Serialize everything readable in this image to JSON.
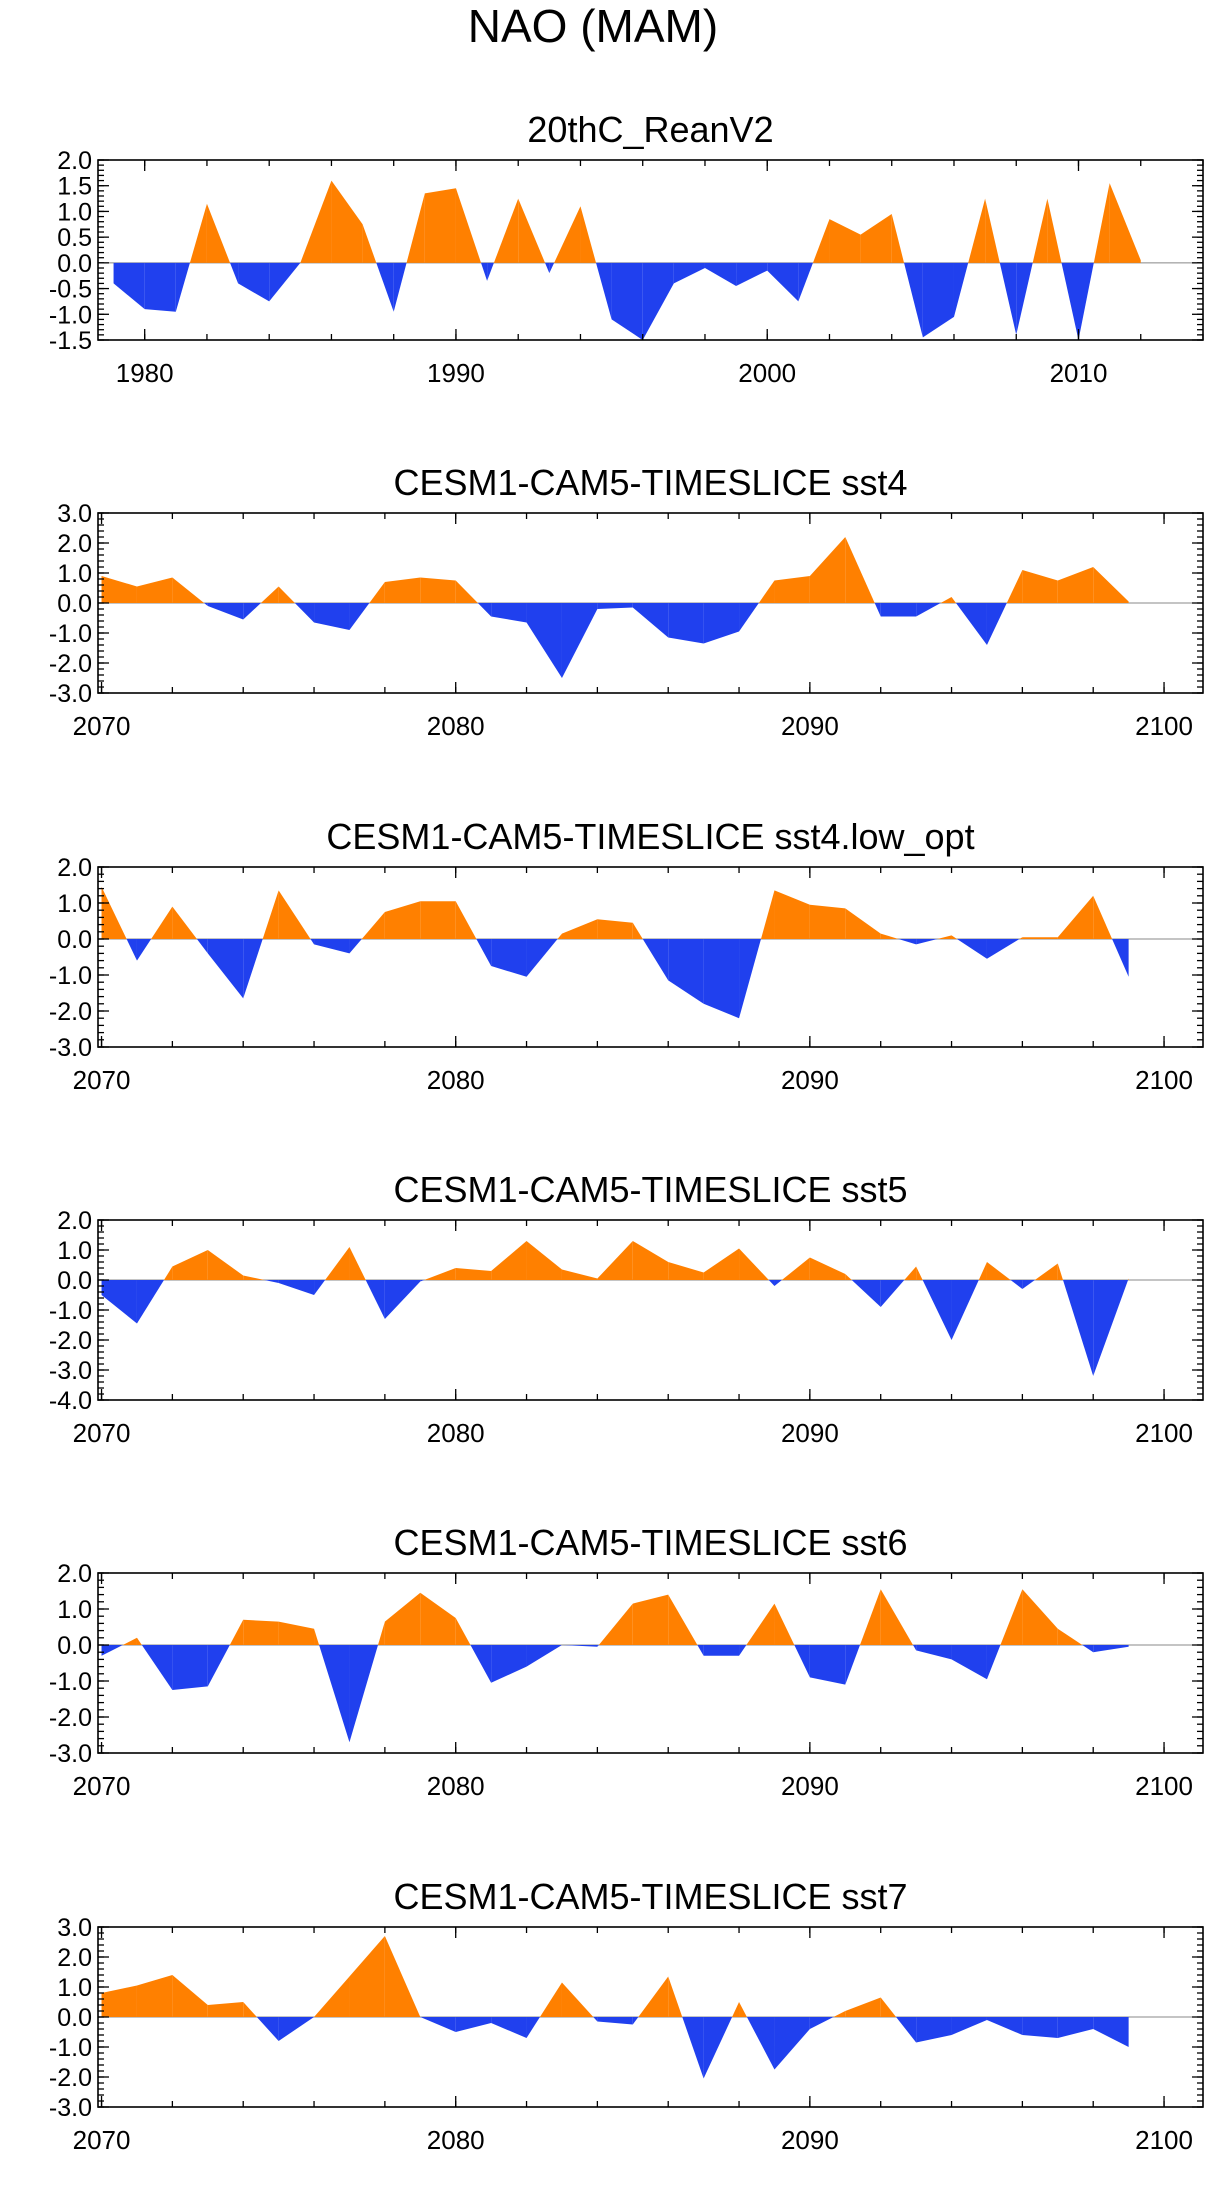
{
  "figure": {
    "title": "NAO (MAM)",
    "colors": {
      "positive": "#ff8000",
      "negative": "#2040ee",
      "frame": "#000000",
      "zero_line": "#888888"
    }
  },
  "chart_data": [
    {
      "type": "area",
      "title": "20thC_ReanV2",
      "xlim": [
        1978.5,
        2014
      ],
      "ylim": [
        -1.5,
        2.0
      ],
      "yticks": [
        2.0,
        1.5,
        1.0,
        0.5,
        0.0,
        -0.5,
        -1.0,
        -1.5
      ],
      "ytick_labels": [
        "2.0",
        "1.5",
        "1.0",
        "0.5",
        "0.0",
        "-0.5",
        "-1.0",
        "-1.5"
      ],
      "xticks": [
        1980,
        1990,
        2000,
        2010
      ],
      "xtick_labels": [
        "1980",
        "1990",
        "2000",
        "2010"
      ],
      "x": [
        1979,
        1980,
        1981,
        1982,
        1983,
        1984,
        1985,
        1986,
        1987,
        1988,
        1989,
        1990,
        1991,
        1992,
        1993,
        1994,
        1995,
        1996,
        1997,
        1998,
        1999,
        2000,
        2001,
        2002,
        2003,
        2004,
        2005,
        2006,
        2007,
        2008,
        2009,
        2010,
        2011,
        2012
      ],
      "values": [
        -0.4,
        -0.9,
        -0.95,
        1.15,
        -0.4,
        -0.75,
        0.0,
        1.6,
        0.75,
        -0.95,
        1.35,
        1.45,
        -0.35,
        1.25,
        -0.2,
        1.1,
        -1.1,
        -1.5,
        -0.4,
        -0.1,
        -0.45,
        -0.15,
        -0.75,
        0.85,
        0.55,
        0.95,
        -1.45,
        -1.05,
        1.25,
        -1.4,
        1.25,
        -1.5,
        1.55,
        0.05
      ]
    },
    {
      "type": "area",
      "title": "CESM1-CAM5-TIMESLICE sst4",
      "xlim": [
        2069.9,
        2101.1
      ],
      "ylim": [
        -3.0,
        3.0
      ],
      "yticks": [
        3.0,
        2.0,
        1.0,
        0.0,
        -1.0,
        -2.0,
        -3.0
      ],
      "ytick_labels": [
        "3.0",
        "2.0",
        "1.0",
        "0.0",
        "-1.0",
        "-2.0",
        "-3.0"
      ],
      "xticks": [
        2070,
        2080,
        2090,
        2100
      ],
      "xtick_labels": [
        "2070",
        "2080",
        "2090",
        "2100"
      ],
      "x": [
        2070,
        2071,
        2072,
        2073,
        2074,
        2075,
        2076,
        2077,
        2078,
        2079,
        2080,
        2081,
        2082,
        2083,
        2084,
        2085,
        2086,
        2087,
        2088,
        2089,
        2090,
        2091,
        2092,
        2093,
        2094,
        2095,
        2096,
        2097,
        2098,
        2099
      ],
      "values": [
        0.9,
        0.55,
        0.85,
        -0.1,
        -0.55,
        0.55,
        -0.65,
        -0.9,
        0.7,
        0.85,
        0.75,
        -0.45,
        -0.65,
        -2.5,
        -0.2,
        -0.15,
        -1.15,
        -1.35,
        -0.95,
        0.75,
        0.9,
        2.2,
        -0.45,
        -0.45,
        0.2,
        -1.4,
        1.1,
        0.75,
        1.2,
        0.05
      ]
    },
    {
      "type": "area",
      "title": "CESM1-CAM5-TIMESLICE sst4.low_opt",
      "xlim": [
        2069.9,
        2101.1
      ],
      "ylim": [
        -3.0,
        2.0
      ],
      "yticks": [
        2.0,
        1.0,
        0.0,
        -1.0,
        -2.0,
        -3.0
      ],
      "ytick_labels": [
        "2.0",
        "1.0",
        "0.0",
        "-1.0",
        "-2.0",
        "-3.0"
      ],
      "xticks": [
        2070,
        2080,
        2090,
        2100
      ],
      "xtick_labels": [
        "2070",
        "2080",
        "2090",
        "2100"
      ],
      "x": [
        2070,
        2071,
        2072,
        2073,
        2074,
        2075,
        2076,
        2077,
        2078,
        2079,
        2080,
        2081,
        2082,
        2083,
        2084,
        2085,
        2086,
        2087,
        2088,
        2089,
        2090,
        2091,
        2092,
        2093,
        2094,
        2095,
        2096,
        2097,
        2098,
        2099
      ],
      "values": [
        1.45,
        -0.6,
        0.9,
        -0.4,
        -1.65,
        1.35,
        -0.15,
        -0.4,
        0.75,
        1.05,
        1.05,
        -0.75,
        -1.05,
        0.15,
        0.55,
        0.45,
        -1.15,
        -1.8,
        -2.2,
        1.35,
        0.95,
        0.85,
        0.15,
        -0.15,
        0.1,
        -0.55,
        0.05,
        0.05,
        1.2,
        -1.05
      ]
    },
    {
      "type": "area",
      "title": "CESM1-CAM5-TIMESLICE sst5",
      "xlim": [
        2069.9,
        2101.1
      ],
      "ylim": [
        -4.0,
        2.0
      ],
      "yticks": [
        2.0,
        1.0,
        0.0,
        -1.0,
        -2.0,
        -3.0,
        -4.0
      ],
      "ytick_labels": [
        "2.0",
        "1.0",
        "0.0",
        "-1.0",
        "-2.0",
        "-3.0",
        "-4.0"
      ],
      "xticks": [
        2070,
        2080,
        2090,
        2100
      ],
      "xtick_labels": [
        "2070",
        "2080",
        "2090",
        "2100"
      ],
      "x": [
        2070,
        2071,
        2072,
        2073,
        2074,
        2075,
        2076,
        2077,
        2078,
        2079,
        2080,
        2081,
        2082,
        2083,
        2084,
        2085,
        2086,
        2087,
        2088,
        2089,
        2090,
        2091,
        2092,
        2093,
        2094,
        2095,
        2096,
        2097,
        2098,
        2099
      ],
      "values": [
        -0.5,
        -1.45,
        0.45,
        1.0,
        0.15,
        -0.1,
        -0.5,
        1.1,
        -1.3,
        -0.05,
        0.4,
        0.3,
        1.3,
        0.35,
        0.05,
        1.3,
        0.6,
        0.25,
        1.05,
        -0.2,
        0.75,
        0.2,
        -0.9,
        0.45,
        -2.0,
        0.6,
        -0.3,
        0.55,
        -3.2,
        0.05
      ]
    },
    {
      "type": "area",
      "title": "CESM1-CAM5-TIMESLICE sst6",
      "xlim": [
        2069.9,
        2101.1
      ],
      "ylim": [
        -3.0,
        2.0
      ],
      "yticks": [
        2.0,
        1.0,
        0.0,
        -1.0,
        -2.0,
        -3.0
      ],
      "ytick_labels": [
        "2.0",
        "1.0",
        "0.0",
        "-1.0",
        "-2.0",
        "-3.0"
      ],
      "xticks": [
        2070,
        2080,
        2090,
        2100
      ],
      "xtick_labels": [
        "2070",
        "2080",
        "2090",
        "2100"
      ],
      "x": [
        2070,
        2071,
        2072,
        2073,
        2074,
        2075,
        2076,
        2077,
        2078,
        2079,
        2080,
        2081,
        2082,
        2083,
        2084,
        2085,
        2086,
        2087,
        2088,
        2089,
        2090,
        2091,
        2092,
        2093,
        2094,
        2095,
        2096,
        2097,
        2098,
        2099
      ],
      "values": [
        -0.3,
        0.2,
        -1.25,
        -1.15,
        0.7,
        0.65,
        0.45,
        -2.7,
        0.65,
        1.45,
        0.75,
        -1.05,
        -0.6,
        0.0,
        -0.05,
        1.15,
        1.4,
        -0.3,
        -0.3,
        1.15,
        -0.9,
        -1.1,
        1.55,
        -0.15,
        -0.4,
        -0.95,
        1.55,
        0.45,
        -0.2,
        -0.05
      ]
    },
    {
      "type": "area",
      "title": "CESM1-CAM5-TIMESLICE sst7",
      "xlim": [
        2069.9,
        2101.1
      ],
      "ylim": [
        -3.0,
        3.0
      ],
      "yticks": [
        3.0,
        2.0,
        1.0,
        0.0,
        -1.0,
        -2.0,
        -3.0
      ],
      "ytick_labels": [
        "3.0",
        "2.0",
        "1.0",
        "0.0",
        "-1.0",
        "-2.0",
        "-3.0"
      ],
      "xticks": [
        2070,
        2080,
        2090,
        2100
      ],
      "xtick_labels": [
        "2070",
        "2080",
        "2090",
        "2100"
      ],
      "x": [
        2070,
        2071,
        2072,
        2073,
        2074,
        2075,
        2076,
        2077,
        2078,
        2079,
        2080,
        2081,
        2082,
        2083,
        2084,
        2085,
        2086,
        2087,
        2088,
        2089,
        2090,
        2091,
        2092,
        2093,
        2094,
        2095,
        2096,
        2097,
        2098,
        2099
      ],
      "values": [
        0.8,
        1.05,
        1.4,
        0.4,
        0.5,
        -0.8,
        0.0,
        1.35,
        2.7,
        0.0,
        -0.5,
        -0.2,
        -0.7,
        1.15,
        -0.15,
        -0.25,
        1.35,
        -2.05,
        0.5,
        -1.75,
        -0.4,
        0.2,
        0.65,
        -0.85,
        -0.6,
        -0.1,
        -0.6,
        -0.7,
        -0.4,
        -1.0
      ]
    }
  ]
}
